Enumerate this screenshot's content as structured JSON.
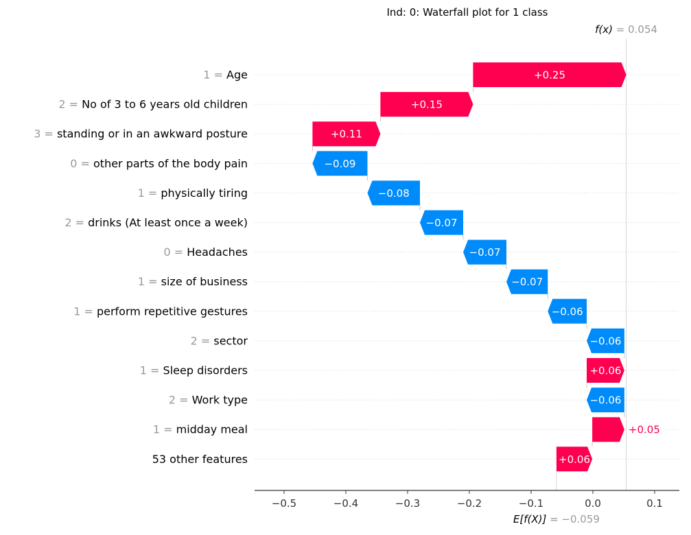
{
  "chart_data": {
    "type": "waterfall",
    "title": "Ind: 0: Waterfall plot for 1 class",
    "fx": {
      "label_main": "f(x)",
      "label_value": "= 0.054",
      "value": 0.054
    },
    "efx": {
      "label_main": "E[f(X)]",
      "label_value": "= −0.059",
      "value": -0.059
    },
    "xlim": [
      -0.54,
      0.14
    ],
    "x_ticks": [
      {
        "value": -0.5,
        "label": "−0.5"
      },
      {
        "value": -0.4,
        "label": "−0.4"
      },
      {
        "value": -0.3,
        "label": "−0.3"
      },
      {
        "value": -0.2,
        "label": "−0.2"
      },
      {
        "value": -0.1,
        "label": "−0.1"
      },
      {
        "value": 0.0,
        "label": "0.0"
      },
      {
        "value": 0.1,
        "label": "0.1"
      }
    ],
    "colors": {
      "positive": "#ff0051",
      "negative": "#008bfb",
      "feature_value": "#999999",
      "feature_name": "#000000"
    },
    "rows": [
      {
        "value_prefix": "1",
        "name": "Age",
        "start": -0.194,
        "end": 0.054,
        "label": "+0.25",
        "sign": "pos",
        "label_outside": false
      },
      {
        "value_prefix": "2",
        "name": "No of 3 to 6 years old children",
        "start": -0.344,
        "end": -0.194,
        "label": "+0.15",
        "sign": "pos",
        "label_outside": false
      },
      {
        "value_prefix": "3",
        "name": "standing or in an awkward posture",
        "start": -0.454,
        "end": -0.344,
        "label": "+0.11",
        "sign": "pos",
        "label_outside": false
      },
      {
        "value_prefix": "0",
        "name": "other parts of the body pain",
        "start": -0.365,
        "end": -0.454,
        "label": "−0.09",
        "sign": "neg",
        "label_outside": false
      },
      {
        "value_prefix": "1",
        "name": "physically tiring",
        "start": -0.28,
        "end": -0.365,
        "label": "−0.08",
        "sign": "neg",
        "label_outside": false
      },
      {
        "value_prefix": "2",
        "name": "drinks (At least once a week)",
        "start": -0.21,
        "end": -0.28,
        "label": "−0.07",
        "sign": "neg",
        "label_outside": false
      },
      {
        "value_prefix": "0",
        "name": "Headaches",
        "start": -0.14,
        "end": -0.21,
        "label": "−0.07",
        "sign": "neg",
        "label_outside": false
      },
      {
        "value_prefix": "1",
        "name": "size of business",
        "start": -0.073,
        "end": -0.14,
        "label": "−0.07",
        "sign": "neg",
        "label_outside": false
      },
      {
        "value_prefix": "1",
        "name": "perform repetitive gestures",
        "start": -0.01,
        "end": -0.073,
        "label": "−0.06",
        "sign": "neg",
        "label_outside": false
      },
      {
        "value_prefix": "2",
        "name": "sector",
        "start": 0.051,
        "end": -0.01,
        "label": "−0.06",
        "sign": "neg",
        "label_outside": false
      },
      {
        "value_prefix": "1",
        "name": "Sleep disorders",
        "start": -0.01,
        "end": 0.051,
        "label": "+0.06",
        "sign": "pos",
        "label_outside": false
      },
      {
        "value_prefix": "2",
        "name": "Work type",
        "start": 0.051,
        "end": -0.01,
        "label": "−0.06",
        "sign": "neg",
        "label_outside": false
      },
      {
        "value_prefix": "1",
        "name": "midday meal",
        "start": -0.001,
        "end": 0.051,
        "label": "+0.05",
        "sign": "pos",
        "label_outside": true
      },
      {
        "value_prefix": "",
        "name": "53 other features",
        "start": -0.059,
        "end": -0.001,
        "label": "+0.06",
        "sign": "pos",
        "label_outside": false
      }
    ]
  }
}
